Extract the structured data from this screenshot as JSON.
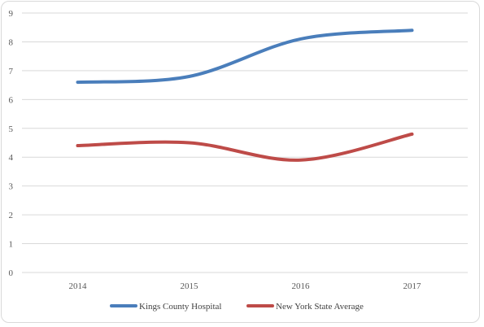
{
  "chart_data": {
    "type": "line",
    "title": "",
    "xlabel": "",
    "ylabel": "",
    "categories": [
      "2014",
      "2015",
      "2016",
      "2017"
    ],
    "ylim": [
      0,
      9
    ],
    "yticks": [
      0,
      1,
      2,
      3,
      4,
      5,
      6,
      7,
      8,
      9
    ],
    "grid": "horizontal",
    "legend_position": "bottom",
    "smooth": true,
    "series": [
      {
        "name": "Kings County Hospital",
        "color": "#4a7ebb",
        "values": [
          6.6,
          6.8,
          8.1,
          8.4
        ]
      },
      {
        "name": "New York State Average",
        "color": "#be4b48",
        "values": [
          4.4,
          4.5,
          3.9,
          4.8
        ]
      }
    ]
  }
}
